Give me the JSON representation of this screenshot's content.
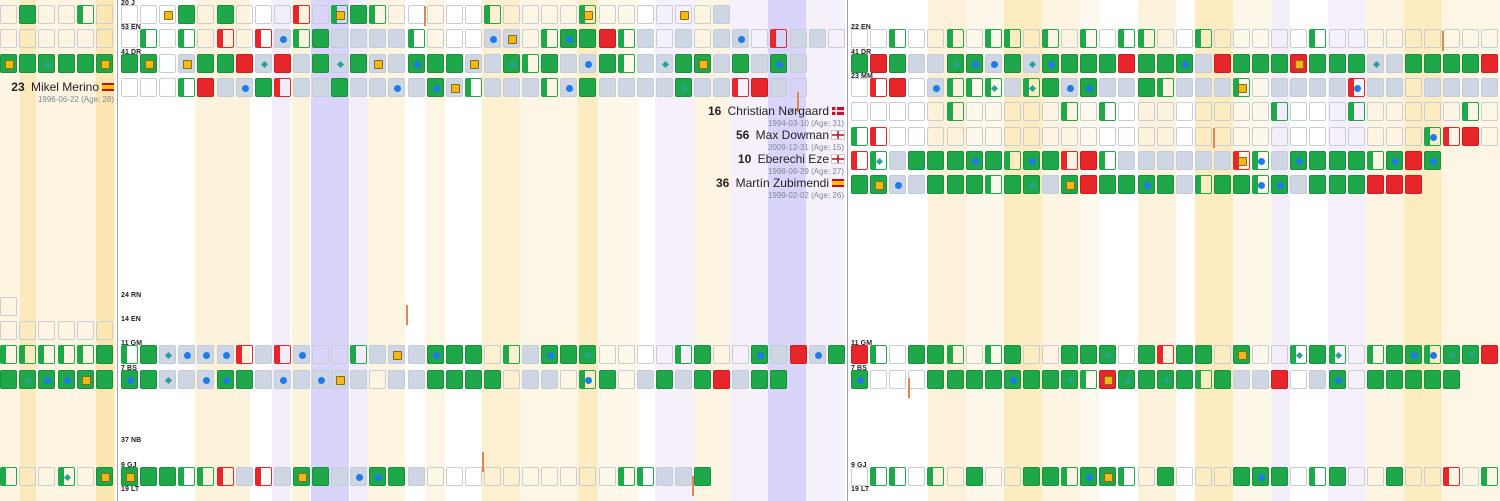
{
  "chart_data": {
    "type": "heatmap",
    "legend": {
      "win": "#1fa84a",
      "loss": "#e6262b",
      "draw": "#cdd6e2",
      "goal": "#1f7bea",
      "assist": "#2aa198",
      "yellow_card": "#f2b817",
      "highlight": "#cfc9f7"
    },
    "panels": [
      "left",
      "middle",
      "right"
    ],
    "row_labels": [
      {
        "text": "20 J",
        "panel": 1,
        "row": 0
      },
      {
        "text": "53 EN",
        "panel": 1,
        "row": 1
      },
      {
        "text": "41 DR",
        "panel": 1,
        "row": 2
      },
      {
        "text": "24 RN",
        "panel": 1,
        "row": 12
      },
      {
        "text": "14 EN",
        "panel": 1,
        "row": 13
      },
      {
        "text": "11 GM",
        "panel": 1,
        "row": 14
      },
      {
        "text": "7 BS",
        "panel": 1,
        "row": 15
      },
      {
        "text": "37 NB",
        "panel": 1,
        "row": 18
      },
      {
        "text": "9 GJ",
        "panel": 1,
        "row": 19
      },
      {
        "text": "19 LT",
        "panel": 1,
        "row": 20
      },
      {
        "text": "22 EN",
        "panel": 2,
        "row": 1
      },
      {
        "text": "41 DR",
        "panel": 2,
        "row": 2
      },
      {
        "text": "23 MM",
        "panel": 2,
        "row": 3
      },
      {
        "text": "11 GM",
        "panel": 2,
        "row": 14
      },
      {
        "text": "7 BS",
        "panel": 2,
        "row": 15
      },
      {
        "text": "9 GJ",
        "panel": 2,
        "row": 19
      },
      {
        "text": "19 LT",
        "panel": 2,
        "row": 20
      }
    ],
    "players": [
      {
        "number": "23",
        "name": "Mikel Merino",
        "flag": "spain",
        "born": "1996-06-22 (Age: 28)",
        "side": "left"
      },
      {
        "number": "16",
        "name": "Christian Nørgaard",
        "flag": "denmark",
        "born": "1994-03-10 (Age: 31)",
        "side": "middle"
      },
      {
        "number": "56",
        "name": "Max Dowman",
        "flag": "england",
        "born": "2009-12-31 (Age: 15)",
        "side": "middle"
      },
      {
        "number": "10",
        "name": "Eberechi Eze",
        "flag": "england",
        "born": "1998-06-29 (Age: 27)",
        "side": "middle"
      },
      {
        "number": "36",
        "name": "Martín Zubimendi",
        "flag": "spain",
        "born": "1999-02-02 (Age: 26)",
        "side": "middle"
      }
    ],
    "rows": [
      {
        "panel": 0,
        "row": 0,
        "cells": [
          "e",
          "w:0.5",
          "e",
          "e",
          "ow",
          "e"
        ]
      },
      {
        "panel": 0,
        "row": 1,
        "cells": [
          "e",
          "e",
          "e",
          "e",
          "e",
          "e"
        ]
      },
      {
        "panel": 0,
        "row": 2,
        "cells": [
          "w|y",
          "w",
          "w|d",
          "w",
          "w",
          "w|y"
        ]
      },
      {
        "panel": 0,
        "row": 12,
        "cells": [
          "e"
        ]
      },
      {
        "panel": 0,
        "row": 13,
        "cells": [
          "e",
          "e",
          "e",
          "e",
          "e",
          "e"
        ]
      },
      {
        "panel": 0,
        "row": 14,
        "cells": [
          "ow",
          "ow",
          "ow",
          "ow",
          "ow",
          "w"
        ]
      },
      {
        "panel": 0,
        "row": 15,
        "cells": [
          "w",
          "w|d",
          "w|g",
          "w|g",
          "w|y",
          "w"
        ]
      },
      {
        "panel": 0,
        "row": 19,
        "cells": [
          "ow",
          "e",
          "e",
          "ow|d",
          "e",
          "w|y"
        ]
      },
      {
        "panel": 1,
        "row": 0,
        "cells": [
          "e",
          "e",
          "e|y",
          "w",
          "e",
          "w",
          "e",
          "e",
          "e",
          "or",
          "e",
          "ow|y",
          "w",
          "ow",
          "e",
          "e",
          "e",
          "e",
          "e",
          "ow",
          "e",
          "e",
          "e",
          "e",
          "ow|y",
          "e",
          "e",
          "e",
          "e",
          "e|y",
          "e",
          "d"
        ]
      },
      {
        "panel": 1,
        "row": 1,
        "cells": [
          "e",
          "ow",
          "e",
          "ow",
          "e",
          "or",
          "e",
          "or",
          "d|g",
          "ow",
          "w",
          "d",
          "d",
          "d",
          "d",
          "ow",
          "e",
          "e",
          "e",
          "d|g",
          "d|y",
          "e",
          "ow",
          "w|g",
          "w",
          "l",
          "ow",
          "d",
          "e",
          "d",
          "e",
          "d",
          "d|g",
          "e",
          "or",
          "d",
          "d",
          "e",
          "d"
        ]
      },
      {
        "panel": 1,
        "row": 2,
        "cells": [
          "w",
          "w|y",
          "e",
          "d|y",
          "w",
          "w",
          "l",
          "d|d",
          "l",
          "d",
          "w",
          "d|d",
          "w",
          "d|y",
          "d",
          "w|g",
          "w",
          "w",
          "d|y",
          "d",
          "w|d",
          "ow",
          "w",
          "d",
          "d|g",
          "w",
          "ow",
          "d",
          "d|d",
          "w",
          "w|y",
          "d",
          "w",
          "d",
          "w|g",
          "d"
        ]
      },
      {
        "panel": 1,
        "row": 3,
        "cells": [
          "e",
          "e",
          "e",
          "ow",
          "l",
          "d",
          "d|g",
          "w",
          "or",
          "d",
          "d",
          "w",
          "d",
          "d",
          "d|g",
          "d",
          "w|g",
          "d|y",
          "ow",
          "d",
          "d",
          "d",
          "ow",
          "d|g",
          "w",
          "d",
          "d",
          "d",
          "d",
          "w|d",
          "d",
          "d",
          "or",
          "l",
          "d",
          "e"
        ]
      },
      {
        "panel": 1,
        "row": 14,
        "cells": [
          "ow",
          "w",
          "d|d",
          "d|g",
          "d|g",
          "d|g",
          "or",
          "d",
          "or",
          "d|g",
          "e",
          "e",
          "ow",
          "d",
          "d|y",
          "d",
          "w|g",
          "w",
          "w",
          "e",
          "ow",
          "d",
          "w|g",
          "w",
          "w|d",
          "e",
          "e",
          "e",
          "e",
          "ow",
          "w",
          "e",
          "e",
          "w|g",
          "d",
          "l",
          "d|g",
          "w",
          "w"
        ]
      },
      {
        "panel": 1,
        "row": 15,
        "cells": [
          "w|g",
          "w",
          "d|d",
          "d",
          "d|g",
          "w|g",
          "w",
          "d",
          "d|g",
          "d",
          "d|g",
          "d|y",
          "d",
          "e",
          "d",
          "d",
          "w",
          "w",
          "w",
          "w",
          "e",
          "d",
          "d",
          "e",
          "ow|g",
          "w",
          "e",
          "d",
          "w",
          "d",
          "w",
          "l",
          "d",
          "w",
          "w"
        ]
      },
      {
        "panel": 1,
        "row": 19,
        "cells": [
          "w|y",
          "w",
          "w",
          "ow",
          "ow",
          "or",
          "d",
          "or",
          "d",
          "w|y",
          "w",
          "d",
          "d|g",
          "w|g",
          "w",
          "d",
          "e",
          "e",
          "e",
          "e",
          "e",
          "e",
          "e",
          "e",
          "e",
          "e",
          "ow",
          "ow",
          "d",
          "d",
          "w"
        ]
      },
      {
        "panel": 2,
        "row": 1,
        "cells": [
          "e",
          "e",
          "ow",
          "e",
          "e",
          "ow",
          "e",
          "ow",
          "ow",
          "e",
          "ow",
          "e",
          "ow",
          "e",
          "ow",
          "ow",
          "e",
          "e",
          "ow",
          "e",
          "e",
          "e",
          "e",
          "e",
          "ow",
          "e",
          "e",
          "e",
          "e",
          "e",
          "e",
          "e",
          "e",
          "e",
          "e",
          "ow",
          "ow",
          "e",
          "e",
          "or",
          "e",
          "or"
        ]
      },
      {
        "panel": 2,
        "row": 2,
        "cells": [
          "w",
          "l",
          "w",
          "d",
          "d",
          "w|d",
          "w|g",
          "d|g",
          "w",
          "d|d",
          "w|g",
          "w",
          "w",
          "w",
          "l",
          "w",
          "w",
          "w|g",
          "d",
          "l",
          "w",
          "w",
          "w",
          "l|y",
          "w",
          "w",
          "w",
          "d|d",
          "d",
          "w",
          "w",
          "w",
          "w",
          "l",
          "l",
          "w"
        ]
      },
      {
        "panel": 2,
        "row": 3,
        "cells": [
          "e",
          "or",
          "l",
          "e",
          "d|g",
          "ow",
          "ow",
          "ow|d",
          "d",
          "ow|d",
          "w",
          "d|g",
          "w|g",
          "d",
          "d",
          "w",
          "ow",
          "d",
          "d",
          "d",
          "ow|y",
          "e",
          "d",
          "d",
          "d",
          "d",
          "or|g",
          "d",
          "d",
          "e",
          "d",
          "d",
          "d",
          "d",
          "e",
          "e"
        ]
      },
      {
        "panel": 2,
        "row": 4,
        "cells": [
          "e",
          "e",
          "e",
          "e",
          "e",
          "ow",
          "e",
          "e",
          "e",
          "e",
          "e",
          "ow",
          "e",
          "ow",
          "e",
          "e",
          "e",
          "e",
          "e",
          "e",
          "e",
          "e",
          "ow",
          "e",
          "e",
          "e",
          "ow",
          "e",
          "e",
          "e",
          "e",
          "e",
          "ow",
          "e",
          "e",
          "e"
        ]
      },
      {
        "panel": 2,
        "row": 5,
        "cells": [
          "ow",
          "or",
          "e",
          "e",
          "e",
          "e",
          "e",
          "e",
          "e",
          "e",
          "e",
          "e",
          "e",
          "e",
          "e",
          "e",
          "e",
          "e",
          "e",
          "e",
          "e",
          "e",
          "e",
          "e",
          "e",
          "e",
          "e",
          "e",
          "e",
          "e",
          "ow|g",
          "or",
          "l",
          "e"
        ]
      },
      {
        "panel": 2,
        "row": 6,
        "cells": [
          "or",
          "ow|d",
          "d",
          "w",
          "w",
          "w",
          "w|g",
          "w",
          "ow",
          "w|g",
          "w",
          "or",
          "l",
          "ow",
          "d",
          "d",
          "d",
          "d",
          "d",
          "d",
          "or|y",
          "ow|g",
          "d",
          "w|g",
          "w",
          "w",
          "w",
          "ow",
          "w|g",
          "l",
          "w|g"
        ]
      },
      {
        "panel": 2,
        "row": 7,
        "cells": [
          "w",
          "w|y",
          "d|g",
          "d",
          "w",
          "w",
          "w",
          "ow",
          "w",
          "w|d",
          "d",
          "w|y",
          "l",
          "w",
          "w",
          "w|g",
          "w",
          "d",
          "ow",
          "w",
          "w",
          "ow|g",
          "w|g",
          "d",
          "w",
          "w",
          "w",
          "l",
          "l",
          "l"
        ]
      },
      {
        "panel": 2,
        "row": 14,
        "cells": [
          "l",
          "ow",
          "e",
          "w",
          "w",
          "ow",
          "e",
          "ow",
          "w",
          "e",
          "e",
          "w",
          "w",
          "w|d",
          "e",
          "w",
          "or",
          "w",
          "w",
          "e",
          "w|y",
          "e",
          "e",
          "ow|d",
          "w",
          "ow|d",
          "e",
          "ow",
          "w",
          "w|g",
          "ow|g",
          "w|d",
          "w|d",
          "l",
          "ow",
          "w|g"
        ]
      },
      {
        "panel": 2,
        "row": 15,
        "cells": [
          "w|g",
          "e",
          "e",
          "e",
          "w",
          "w",
          "w",
          "w",
          "w|g",
          "w",
          "w",
          "w|d",
          "ow",
          "l|y",
          "w|d",
          "w",
          "w|d",
          "w",
          "ow",
          "w",
          "d",
          "d",
          "l",
          "e",
          "d",
          "w|g",
          "e",
          "w",
          "w",
          "w",
          "w",
          "w"
        ]
      },
      {
        "panel": 2,
        "row": 19,
        "cells": [
          "e",
          "ow",
          "ow",
          "e",
          "ow",
          "e",
          "w",
          "e",
          "e",
          "w",
          "w",
          "ow",
          "w|g",
          "w|y",
          "ow",
          "e",
          "w",
          "e",
          "e",
          "e",
          "w",
          "w|g",
          "w",
          "e",
          "ow",
          "w",
          "e",
          "e",
          "w",
          "e",
          "e",
          "or",
          "e",
          "ow",
          "ow",
          "e",
          "ow"
        ]
      }
    ]
  }
}
